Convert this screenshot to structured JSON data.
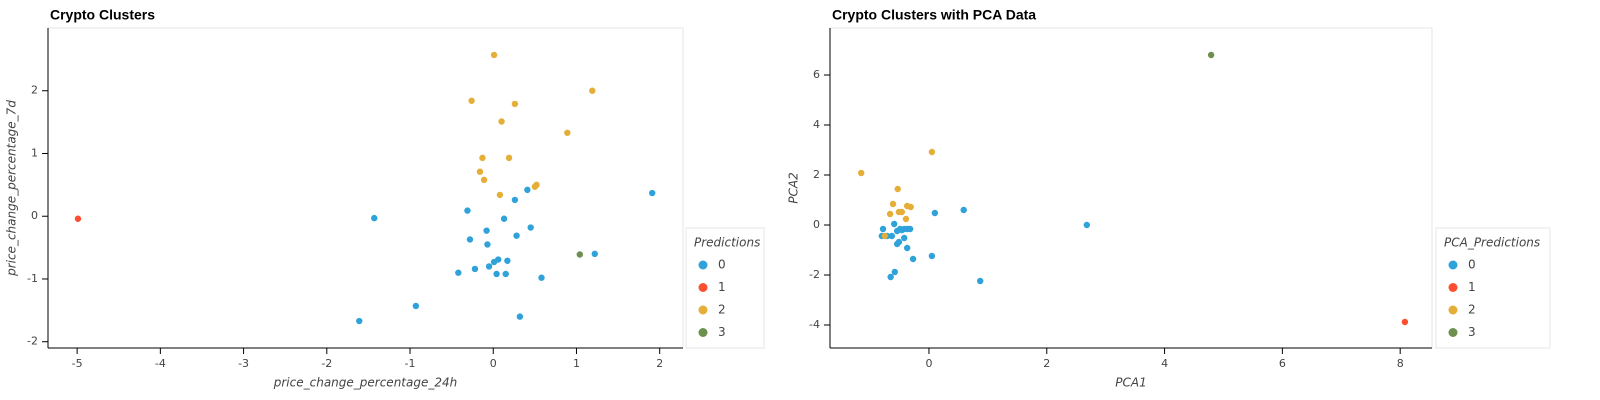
{
  "chart_data": [
    {
      "type": "scatter",
      "title": "Crypto Clusters",
      "x_label": "price_change_percentage_24h",
      "y_label": "price_change_percentage_7d",
      "legend_title": "Predictions",
      "legend_position": "outside-right-bottom",
      "xlim": [
        -5.35,
        2.28
      ],
      "ylim": [
        -2.1,
        3.0
      ],
      "xticks": [
        -5,
        -4,
        -3,
        -2,
        -1,
        0,
        1,
        2
      ],
      "yticks": [
        -2,
        -1,
        0,
        1,
        2
      ],
      "series": [
        {
          "name": "0",
          "color": "#30a2da",
          "x": [
            -1.43,
            -1.61,
            -0.93,
            -0.42,
            -0.22,
            -0.31,
            -0.28,
            -0.08,
            -0.07,
            -0.05,
            0.01,
            0.06,
            0.04,
            0.13,
            0.15,
            0.17,
            0.26,
            0.28,
            0.41,
            0.45,
            0.58,
            0.32,
            1.22,
            1.91
          ],
          "values": [
            -0.03,
            -1.67,
            -1.43,
            -0.9,
            -0.84,
            0.09,
            -0.37,
            -0.23,
            -0.45,
            -0.8,
            -0.73,
            -0.69,
            -0.92,
            -0.04,
            -0.92,
            -0.71,
            0.26,
            -0.31,
            0.42,
            -0.18,
            -0.98,
            -1.6,
            -0.6,
            0.37
          ]
        },
        {
          "name": "1",
          "color": "#fc4f30",
          "x": [
            -4.99
          ],
          "values": [
            -0.04
          ]
        },
        {
          "name": "2",
          "color": "#e5ae38",
          "x": [
            0.01,
            -0.26,
            0.26,
            0.1,
            1.19,
            0.89,
            -0.13,
            0.19,
            -0.16,
            -0.11,
            0.08,
            0.5,
            0.52
          ],
          "values": [
            2.57,
            1.84,
            1.79,
            1.51,
            2.0,
            1.33,
            0.93,
            0.93,
            0.71,
            0.58,
            0.34,
            0.47,
            0.5
          ]
        },
        {
          "name": "3",
          "color": "#6d904f",
          "x": [
            1.04
          ],
          "values": [
            -0.61
          ]
        }
      ]
    },
    {
      "type": "scatter",
      "title": "Crypto Clusters with PCA Data",
      "x_label": "PCA1",
      "y_label": "PCA2",
      "legend_title": "PCA_Predictions",
      "legend_position": "outside-right-bottom",
      "xlim": [
        -1.68,
        8.54
      ],
      "ylim": [
        -4.92,
        7.88
      ],
      "xticks": [
        0,
        2,
        4,
        6,
        8
      ],
      "yticks": [
        -4,
        -2,
        0,
        2,
        4,
        6
      ],
      "series": [
        {
          "name": "0",
          "color": "#30a2da",
          "x": [
            2.68,
            0.87,
            0.59,
            0.1,
            0.05,
            -0.27,
            -0.37,
            -0.42,
            -0.32,
            -0.46,
            -0.54,
            -0.51,
            -0.58,
            -0.65,
            -0.63,
            -0.71,
            -0.78,
            -0.59,
            -0.8,
            -0.54,
            -0.42,
            -0.49,
            -0.37
          ],
          "values": [
            0.0,
            -2.24,
            0.6,
            0.48,
            -1.24,
            -1.36,
            -0.92,
            -0.52,
            -0.16,
            -0.2,
            -0.24,
            -0.68,
            -1.88,
            -2.08,
            -0.44,
            -0.44,
            -0.16,
            0.04,
            -0.44,
            -0.76,
            -0.16,
            -0.16,
            -0.16
          ]
        },
        {
          "name": "1",
          "color": "#fc4f30",
          "x": [
            8.08
          ],
          "values": [
            -3.88
          ]
        },
        {
          "name": "2",
          "color": "#e5ae38",
          "x": [
            -1.15,
            0.05,
            -0.53,
            -0.61,
            -0.66,
            -0.46,
            -0.37,
            -0.31,
            -0.39,
            -0.75,
            -0.51
          ],
          "values": [
            2.08,
            2.92,
            1.44,
            0.84,
            0.44,
            0.52,
            0.76,
            0.72,
            0.24,
            -0.44,
            0.52
          ]
        },
        {
          "name": "3",
          "color": "#6d904f",
          "x": [
            4.79
          ],
          "values": [
            6.8
          ]
        }
      ]
    }
  ]
}
